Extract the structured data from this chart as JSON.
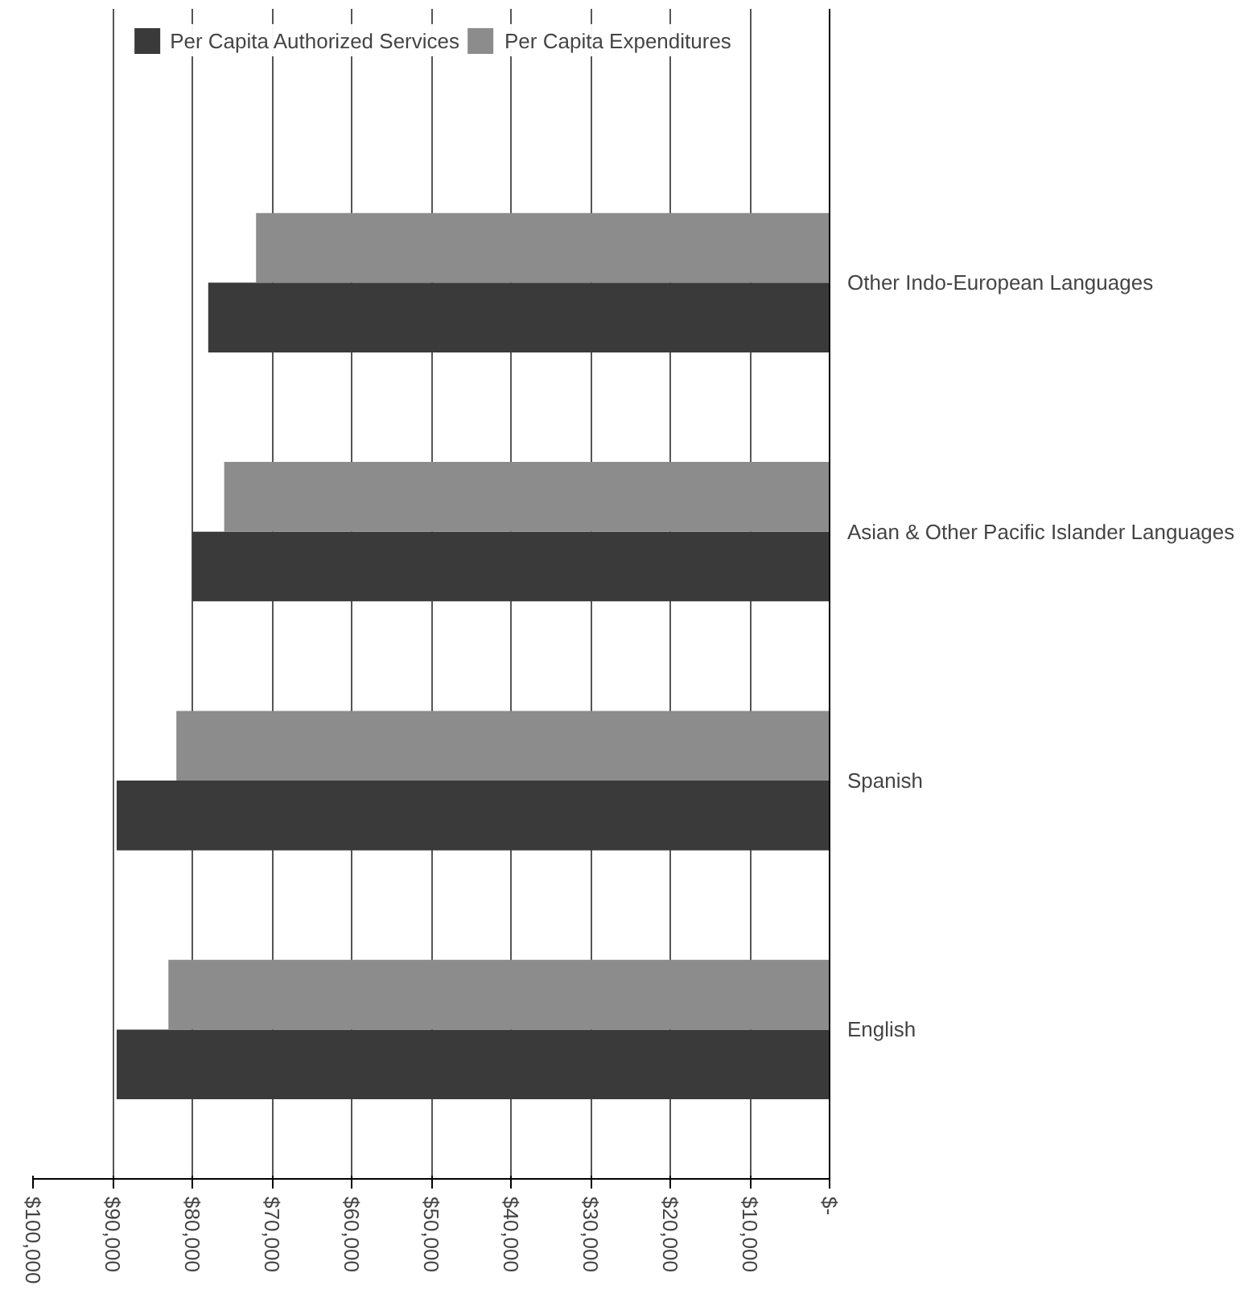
{
  "chart_data": {
    "type": "bar",
    "orientation": "horizontal",
    "categories": [
      "Other Indo-European Languages",
      "Asian & Other Pacific Islander Languages",
      "Spanish",
      "English"
    ],
    "series": [
      {
        "name": "Per Capita Authorized Services",
        "color": "#3a3a3a",
        "values": [
          78000,
          80000,
          89500,
          89500
        ]
      },
      {
        "name": "Per Capita Expenditures",
        "color": "#8c8c8c",
        "values": [
          72000,
          76000,
          82000,
          83000
        ]
      }
    ],
    "xlim": [
      100000,
      0
    ],
    "xticks": [
      {
        "value": 100000,
        "label": "$100,000"
      },
      {
        "value": 90000,
        "label": "$90,000"
      },
      {
        "value": 80000,
        "label": "$80,000"
      },
      {
        "value": 70000,
        "label": "$70,000"
      },
      {
        "value": 60000,
        "label": "$60,000"
      },
      {
        "value": 50000,
        "label": "$50,000"
      },
      {
        "value": 40000,
        "label": "$40,000"
      },
      {
        "value": 30000,
        "label": "$30,000"
      },
      {
        "value": 20000,
        "label": "$20,000"
      },
      {
        "value": 10000,
        "label": "$10,000"
      },
      {
        "value": 0,
        "label": "$-"
      }
    ],
    "grid": "x",
    "legend": "top"
  }
}
